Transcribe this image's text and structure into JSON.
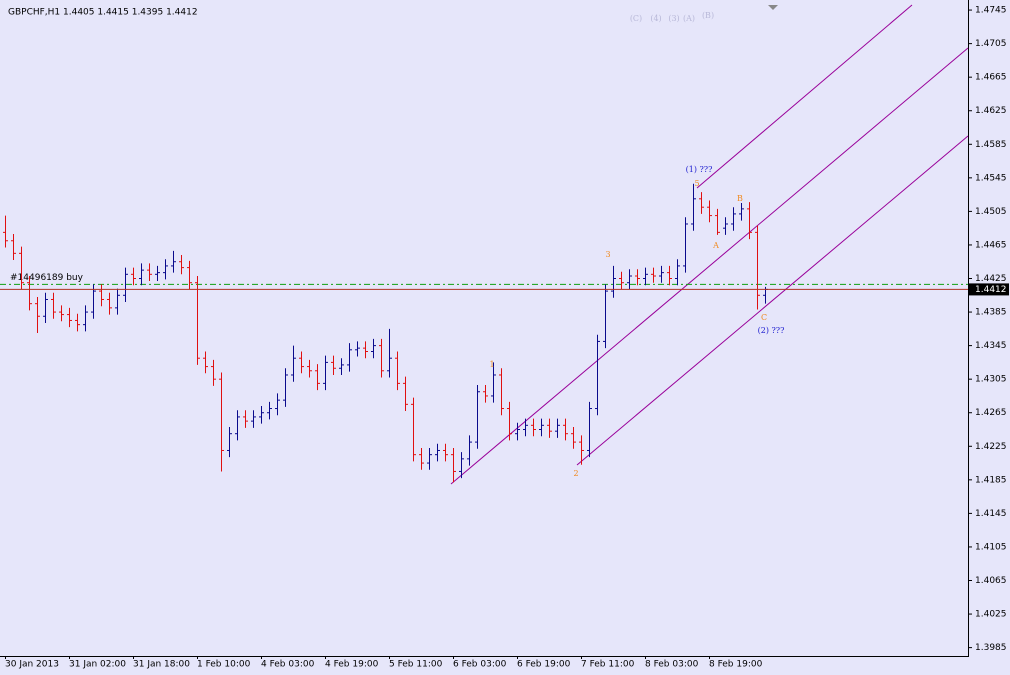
{
  "chart_data": {
    "type": "ohlc",
    "title": "GBPCHF,H1  1.4405 1.4415 1.4395 1.4412",
    "up_color": "#0a0a8c",
    "down_color": "#e01010",
    "categories": [
      "30 Jan 2013",
      null,
      null,
      null,
      null,
      null,
      null,
      null,
      "31 Jan 02:00",
      null,
      null,
      null,
      null,
      null,
      null,
      null,
      "31 Jan 18:00",
      null,
      null,
      null,
      null,
      null,
      null,
      null,
      "1 Feb 10:00",
      null,
      null,
      null,
      null,
      null,
      null,
      null,
      "4 Feb 03:00",
      null,
      null,
      null,
      null,
      null,
      null,
      null,
      "4 Feb 19:00",
      null,
      null,
      null,
      null,
      null,
      null,
      null,
      "5 Feb 11:00",
      null,
      null,
      null,
      null,
      null,
      null,
      null,
      "6 Feb 03:00",
      null,
      null,
      null,
      null,
      null,
      null,
      null,
      "6 Feb 19:00",
      null,
      null,
      null,
      null,
      null,
      null,
      null,
      "7 Feb 11:00",
      null,
      null,
      null,
      null,
      null,
      null,
      null,
      "8 Feb 03:00",
      null,
      null,
      null,
      null,
      null,
      null,
      null,
      "8 Feb 19:00",
      null,
      null,
      null,
      null,
      null,
      null,
      null
    ],
    "open": [
      1.448,
      1.447,
      1.4455,
      1.442,
      1.4395,
      1.438,
      1.44,
      1.4385,
      1.4382,
      1.4375,
      1.437,
      1.4385,
      1.441,
      1.44,
      1.439,
      1.4405,
      1.443,
      1.4425,
      1.4435,
      1.443,
      1.4432,
      1.444,
      1.4445,
      1.4438,
      1.442,
      1.433,
      1.432,
      1.4305,
      1.422,
      1.424,
      1.426,
      1.4255,
      1.426,
      1.4265,
      1.427,
      1.428,
      1.431,
      1.433,
      1.432,
      1.4315,
      1.43,
      1.4325,
      1.4318,
      1.4322,
      1.434,
      1.4342,
      1.4338,
      1.4345,
      1.4315,
      1.433,
      1.43,
      1.4275,
      1.4215,
      1.4205,
      1.4215,
      1.422,
      1.4215,
      1.4195,
      1.421,
      1.423,
      1.429,
      1.4285,
      1.431,
      1.427,
      1.424,
      1.4245,
      1.425,
      1.4245,
      1.425,
      1.4243,
      1.425,
      1.424,
      1.423,
      1.422,
      1.427,
      1.435,
      1.441,
      1.4425,
      1.442,
      1.4428,
      1.4425,
      1.443,
      1.4428,
      1.4432,
      1.4425,
      1.444,
      1.449,
      1.452,
      1.451,
      1.45,
      1.4485,
      1.449,
      1.4502,
      1.4508,
      1.448,
      1.4405
    ],
    "high": [
      1.45,
      1.4478,
      1.4463,
      1.4428,
      1.4403,
      1.4408,
      1.4408,
      1.4393,
      1.439,
      1.4383,
      1.4393,
      1.4418,
      1.4418,
      1.4408,
      1.4413,
      1.4438,
      1.4438,
      1.4443,
      1.4443,
      1.444,
      1.4448,
      1.4458,
      1.4453,
      1.4446,
      1.4428,
      1.4338,
      1.4328,
      1.4313,
      1.4248,
      1.4268,
      1.4268,
      1.4268,
      1.4273,
      1.4278,
      1.4288,
      1.4318,
      1.4345,
      1.4338,
      1.4328,
      1.4323,
      1.4333,
      1.4333,
      1.433,
      1.4348,
      1.435,
      1.435,
      1.4353,
      1.4353,
      1.4365,
      1.4338,
      1.4308,
      1.4283,
      1.4223,
      1.4223,
      1.4228,
      1.4228,
      1.4223,
      1.4218,
      1.4238,
      1.4298,
      1.4298,
      1.4325,
      1.4318,
      1.4278,
      1.4253,
      1.4258,
      1.4258,
      1.4258,
      1.4258,
      1.4258,
      1.4258,
      1.4248,
      1.4238,
      1.4278,
      1.4358,
      1.4418,
      1.444,
      1.4433,
      1.4436,
      1.4436,
      1.4438,
      1.4438,
      1.444,
      1.444,
      1.4448,
      1.4498,
      1.4538,
      1.4528,
      1.4518,
      1.4508,
      1.4498,
      1.451,
      1.4515,
      1.4516,
      1.4488,
      1.4415
    ],
    "low": [
      1.4462,
      1.4447,
      1.4412,
      1.4387,
      1.436,
      1.4372,
      1.4377,
      1.4374,
      1.4367,
      1.4362,
      1.4362,
      1.4377,
      1.4392,
      1.4382,
      1.4382,
      1.4397,
      1.4417,
      1.4417,
      1.4422,
      1.4422,
      1.4424,
      1.4432,
      1.443,
      1.4412,
      1.4322,
      1.4312,
      1.4297,
      1.4195,
      1.4212,
      1.4232,
      1.4247,
      1.4247,
      1.4252,
      1.4257,
      1.4262,
      1.4272,
      1.4302,
      1.4312,
      1.4307,
      1.4292,
      1.4292,
      1.431,
      1.431,
      1.4314,
      1.4332,
      1.433,
      1.433,
      1.4307,
      1.4307,
      1.4292,
      1.4267,
      1.4207,
      1.4197,
      1.4197,
      1.4207,
      1.4207,
      1.4182,
      1.4187,
      1.4202,
      1.4222,
      1.4277,
      1.4277,
      1.4262,
      1.4232,
      1.4232,
      1.4237,
      1.4237,
      1.4237,
      1.4235,
      1.4235,
      1.4232,
      1.4222,
      1.4203,
      1.4212,
      1.4262,
      1.4342,
      1.4402,
      1.4412,
      1.4412,
      1.4417,
      1.4417,
      1.442,
      1.442,
      1.4417,
      1.4417,
      1.4432,
      1.4482,
      1.4502,
      1.4492,
      1.4477,
      1.4477,
      1.4482,
      1.4494,
      1.4472,
      1.4388,
      1.4395
    ],
    "close": [
      1.447,
      1.4455,
      1.442,
      1.4395,
      1.438,
      1.44,
      1.4385,
      1.4382,
      1.4375,
      1.437,
      1.4385,
      1.441,
      1.44,
      1.439,
      1.4405,
      1.443,
      1.4425,
      1.4435,
      1.443,
      1.4432,
      1.444,
      1.4445,
      1.4438,
      1.442,
      1.433,
      1.432,
      1.4305,
      1.422,
      1.424,
      1.426,
      1.4255,
      1.426,
      1.4265,
      1.427,
      1.428,
      1.431,
      1.433,
      1.432,
      1.4315,
      1.43,
      1.4325,
      1.4318,
      1.4322,
      1.434,
      1.4342,
      1.4338,
      1.4345,
      1.4315,
      1.433,
      1.43,
      1.4275,
      1.4215,
      1.4205,
      1.4215,
      1.422,
      1.4215,
      1.4195,
      1.421,
      1.423,
      1.429,
      1.4285,
      1.431,
      1.427,
      1.424,
      1.4245,
      1.425,
      1.4245,
      1.425,
      1.4243,
      1.425,
      1.424,
      1.423,
      1.422,
      1.427,
      1.435,
      1.441,
      1.4425,
      1.442,
      1.4428,
      1.4425,
      1.443,
      1.4428,
      1.4432,
      1.4425,
      1.444,
      1.449,
      1.452,
      1.451,
      1.45,
      1.448,
      1.449,
      1.4502,
      1.4508,
      1.448,
      1.4405,
      1.4412
    ],
    "ylim": [
      1.3975,
      1.4757
    ],
    "yticks": [
      1.4745,
      1.4705,
      1.4665,
      1.4625,
      1.4585,
      1.4545,
      1.4505,
      1.4465,
      1.4425,
      1.4385,
      1.4345,
      1.4305,
      1.4265,
      1.4225,
      1.4185,
      1.4145,
      1.4105,
      1.4065,
      1.4025,
      1.3985
    ],
    "price_line": {
      "value": 1.4412,
      "color": "#b03020"
    },
    "order_line": {
      "label": "#14496189 buy",
      "value": 1.4418,
      "color": "#10a010"
    },
    "annotations": [
      {
        "text": "1",
        "color": "#f08a20"
      },
      {
        "text": "2",
        "color": "#f08a20"
      },
      {
        "text": "3",
        "color": "#f08a20"
      },
      {
        "text": "5",
        "color": "#f08a20"
      },
      {
        "text": "A",
        "color": "#f08a20"
      },
      {
        "text": "B",
        "color": "#f08a20"
      },
      {
        "text": "C",
        "color": "#f08a20"
      },
      {
        "text": "(1) ???",
        "color": "#2020d0"
      },
      {
        "text": "(2) ???",
        "color": "#2020d0"
      },
      {
        "text": "(C)",
        "color": "#b8b8d8"
      },
      {
        "text": "(4)",
        "color": "#b8b8d8"
      },
      {
        "text": "(3)",
        "color": "#b8b8d8"
      },
      {
        "text": "(A)",
        "color": "#b8b8d8"
      },
      {
        "text": "(B)",
        "color": "#b8b8d8"
      }
    ]
  }
}
